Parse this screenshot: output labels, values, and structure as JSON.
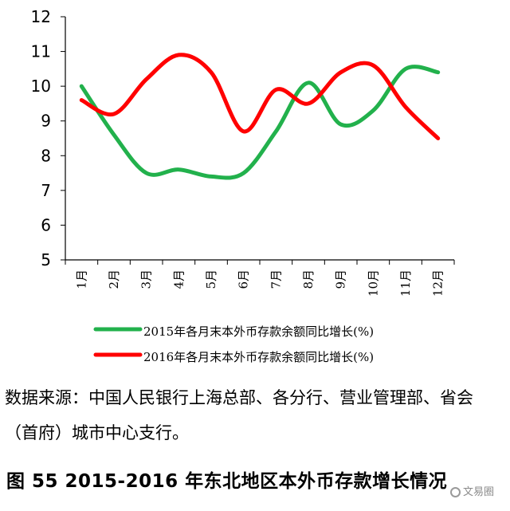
{
  "chart_data": {
    "type": "line",
    "categories": [
      "1月",
      "2月",
      "3月",
      "4月",
      "5月",
      "6月",
      "7月",
      "8月",
      "9月",
      "10月",
      "11月",
      "12月"
    ],
    "ylim": [
      5,
      12
    ],
    "yticks": [
      5,
      6,
      7,
      8,
      9,
      10,
      11,
      12
    ],
    "grid": false,
    "legend_position": "bottom",
    "series": [
      {
        "name": "2015年各月末本外币存款余额同比增长(%)",
        "color": "#22b14c",
        "values": [
          10.0,
          8.6,
          7.5,
          7.6,
          7.4,
          7.5,
          8.7,
          10.1,
          8.9,
          9.3,
          10.5,
          10.4
        ]
      },
      {
        "name": "2016年各月末本外币存款余额同比增长(%)",
        "color": "#ff0000",
        "values": [
          9.6,
          9.2,
          10.2,
          10.9,
          10.4,
          8.7,
          9.9,
          9.5,
          10.4,
          10.6,
          9.4,
          8.5
        ]
      }
    ]
  },
  "source_text": "数据来源：中国人民银行上海总部、各分行、营业管理部、省会（首府）城市中心支行。",
  "caption": "图 55   2015-2016 年东北地区本外币存款增长情况",
  "watermark": "文易圈"
}
